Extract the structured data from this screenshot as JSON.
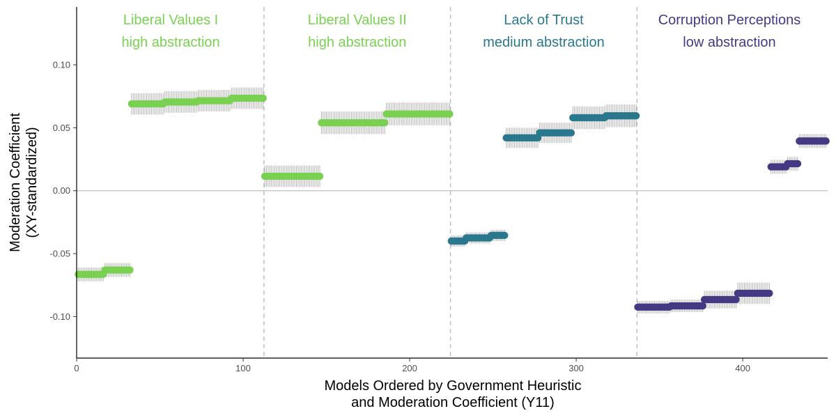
{
  "chart_data": {
    "type": "scatter",
    "xlabel_lines": [
      "Models Ordered by Government Heuristic",
      "and Moderation Coefficient (Y11)"
    ],
    "ylabel_lines": [
      "Moderation Coefficient",
      "(XY-standardized)"
    ],
    "xlim": [
      0,
      451
    ],
    "ylim": [
      -0.133,
      0.146
    ],
    "x_ticks": [
      0,
      100,
      200,
      300,
      400
    ],
    "x_tick_labels": [
      "0",
      "100",
      "200",
      "300",
      "400"
    ],
    "y_ticks": [
      0.1,
      0.05,
      0.0,
      -0.05,
      -0.1
    ],
    "y_tick_labels": [
      "0.10",
      "0.05",
      "0.00",
      "-0.05",
      "-0.10"
    ],
    "reference_line_y": 0,
    "group_dividers_x": [
      112.5,
      224.5,
      336.5
    ],
    "error_bar_color": "#b3b3b3",
    "reference_line_color": "#bfbfbf",
    "divider_color": "#bfbfbf",
    "panels": [
      {
        "line1": "Liberal Values I",
        "line2": "high abstraction",
        "color": "#7ad151",
        "x_center": 56.5
      },
      {
        "line1": "Liberal Values II",
        "line2": "high abstraction",
        "color": "#7ad151",
        "x_center": 168.5
      },
      {
        "line1": "Lack of Trust",
        "line2": "medium abstraction",
        "color": "#2a788e",
        "x_center": 280.5
      },
      {
        "line1": "Corruption Perceptions",
        "line2": "low abstraction",
        "color": "#443983",
        "x_center": 392
      }
    ],
    "series": [
      {
        "name": "Liberal Values I",
        "color": "#7ad151",
        "segments": [
          {
            "x_start": 1,
            "x_end": 16,
            "y": -0.0665,
            "ci": 0.0055
          },
          {
            "x_start": 17,
            "x_end": 32,
            "y": -0.063,
            "ci": 0.0055
          },
          {
            "x_start": 33,
            "x_end": 52,
            "y": 0.069,
            "ci": 0.0085
          },
          {
            "x_start": 53,
            "x_end": 72,
            "y": 0.0705,
            "ci": 0.0085
          },
          {
            "x_start": 73,
            "x_end": 92,
            "y": 0.0715,
            "ci": 0.0085
          },
          {
            "x_start": 93,
            "x_end": 112,
            "y": 0.0735,
            "ci": 0.0085
          }
        ]
      },
      {
        "name": "Liberal Values II",
        "color": "#7ad151",
        "segments": [
          {
            "x_start": 113,
            "x_end": 146,
            "y": 0.0115,
            "ci": 0.0085
          },
          {
            "x_start": 147,
            "x_end": 185,
            "y": 0.054,
            "ci": 0.009
          },
          {
            "x_start": 186,
            "x_end": 224,
            "y": 0.061,
            "ci": 0.009
          }
        ]
      },
      {
        "name": "Lack of Trust",
        "color": "#2a788e",
        "segments": [
          {
            "x_start": 225,
            "x_end": 233,
            "y": -0.04,
            "ci": 0.0045
          },
          {
            "x_start": 234,
            "x_end": 248,
            "y": -0.0375,
            "ci": 0.0045
          },
          {
            "x_start": 249,
            "x_end": 257,
            "y": -0.0355,
            "ci": 0.0045
          },
          {
            "x_start": 258,
            "x_end": 277,
            "y": 0.042,
            "ci": 0.008
          },
          {
            "x_start": 278,
            "x_end": 297,
            "y": 0.046,
            "ci": 0.008
          },
          {
            "x_start": 298,
            "x_end": 317,
            "y": 0.058,
            "ci": 0.009
          },
          {
            "x_start": 318,
            "x_end": 336,
            "y": 0.0595,
            "ci": 0.009
          }
        ]
      },
      {
        "name": "Corruption Perceptions",
        "color": "#443983",
        "segments": [
          {
            "x_start": 337,
            "x_end": 356,
            "y": -0.0925,
            "ci": 0.005
          },
          {
            "x_start": 357,
            "x_end": 376,
            "y": -0.0915,
            "ci": 0.005
          },
          {
            "x_start": 377,
            "x_end": 396,
            "y": -0.0865,
            "ci": 0.007
          },
          {
            "x_start": 397,
            "x_end": 416,
            "y": -0.0815,
            "ci": 0.0085
          },
          {
            "x_start": 417,
            "x_end": 426,
            "y": 0.019,
            "ci": 0.0055
          },
          {
            "x_start": 427,
            "x_end": 433,
            "y": 0.0215,
            "ci": 0.0055
          },
          {
            "x_start": 434,
            "x_end": 450,
            "y": 0.0395,
            "ci": 0.0055
          }
        ]
      }
    ]
  }
}
